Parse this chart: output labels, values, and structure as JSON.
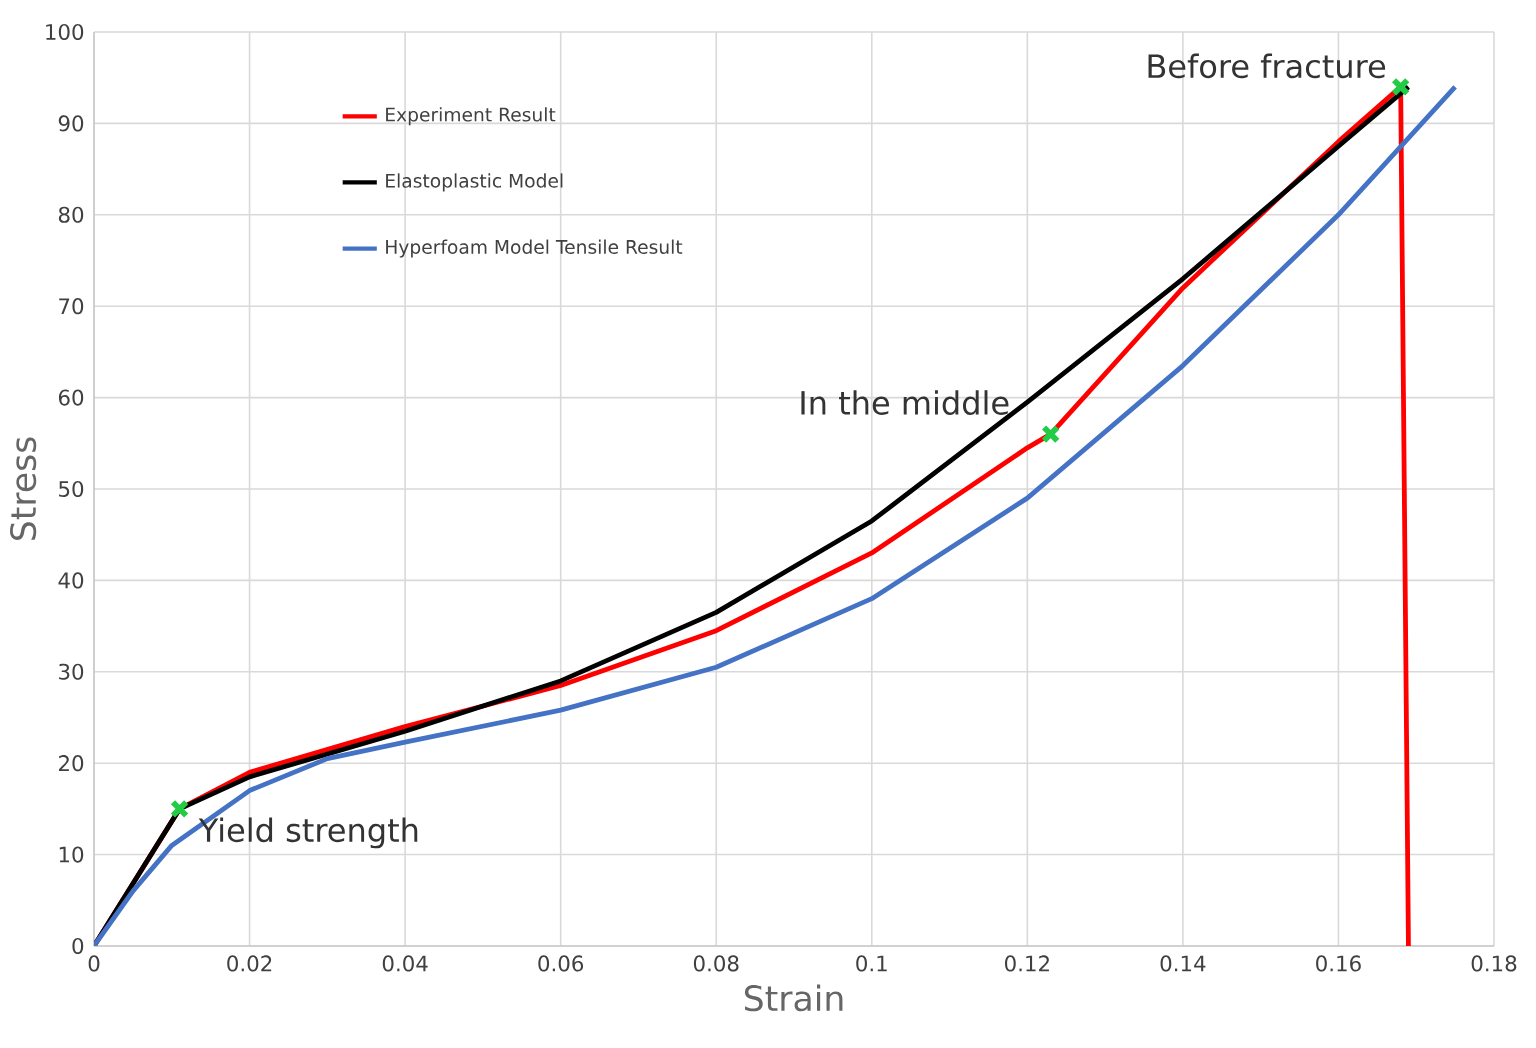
{
  "chart_data": {
    "type": "line",
    "xlabel": "Strain",
    "ylabel": "Stress",
    "xlim": [
      0,
      0.18
    ],
    "ylim": [
      0,
      100
    ],
    "xticks": [
      0,
      0.02,
      0.04,
      0.06,
      0.08,
      0.1,
      0.12,
      0.14,
      0.16,
      0.18
    ],
    "yticks": [
      0,
      10,
      20,
      30,
      40,
      50,
      60,
      70,
      80,
      90,
      100
    ],
    "grid": true,
    "legend": "top left",
    "marker": "none",
    "line_style": "solid",
    "series": [
      {
        "name": "Experiment Result",
        "color": "#ff0000",
        "x": [
          0,
          0.011,
          0.02,
          0.04,
          0.06,
          0.08,
          0.1,
          0.12,
          0.123,
          0.14,
          0.16,
          0.168,
          0.169
        ],
        "values": [
          0,
          15,
          19,
          24,
          28.5,
          34.5,
          43,
          54.5,
          56,
          72,
          88,
          94,
          0
        ]
      },
      {
        "name": "Elastoplastic Model",
        "color": "#000000",
        "x": [
          0,
          0.011,
          0.02,
          0.04,
          0.06,
          0.08,
          0.1,
          0.12,
          0.14,
          0.16,
          0.169
        ],
        "values": [
          0,
          15,
          18.5,
          23.5,
          29,
          36.5,
          46.5,
          59.5,
          73,
          87.5,
          94
        ]
      },
      {
        "name": "Hyperfoam Model Tensile Result",
        "color": "#4472c4",
        "x": [
          0,
          0.005,
          0.01,
          0.02,
          0.03,
          0.04,
          0.06,
          0.08,
          0.1,
          0.12,
          0.14,
          0.16,
          0.175
        ],
        "values": [
          0,
          6,
          11,
          17,
          20.5,
          22.3,
          25.8,
          30.5,
          38,
          49,
          63.5,
          80,
          94
        ]
      },
      {
        "type": "scatter",
        "marker": "cross",
        "color": "#22cc44",
        "x": [
          0.011,
          0.123,
          0.168
        ],
        "values": [
          15,
          56,
          94
        ]
      }
    ],
    "annotations": [
      {
        "text": "Yield strength",
        "x": 0.011,
        "y": 15
      },
      {
        "text": "In the middle",
        "x": 0.123,
        "y": 56
      },
      {
        "text": "Before fracture",
        "x": 0.168,
        "y": 94
      }
    ]
  }
}
